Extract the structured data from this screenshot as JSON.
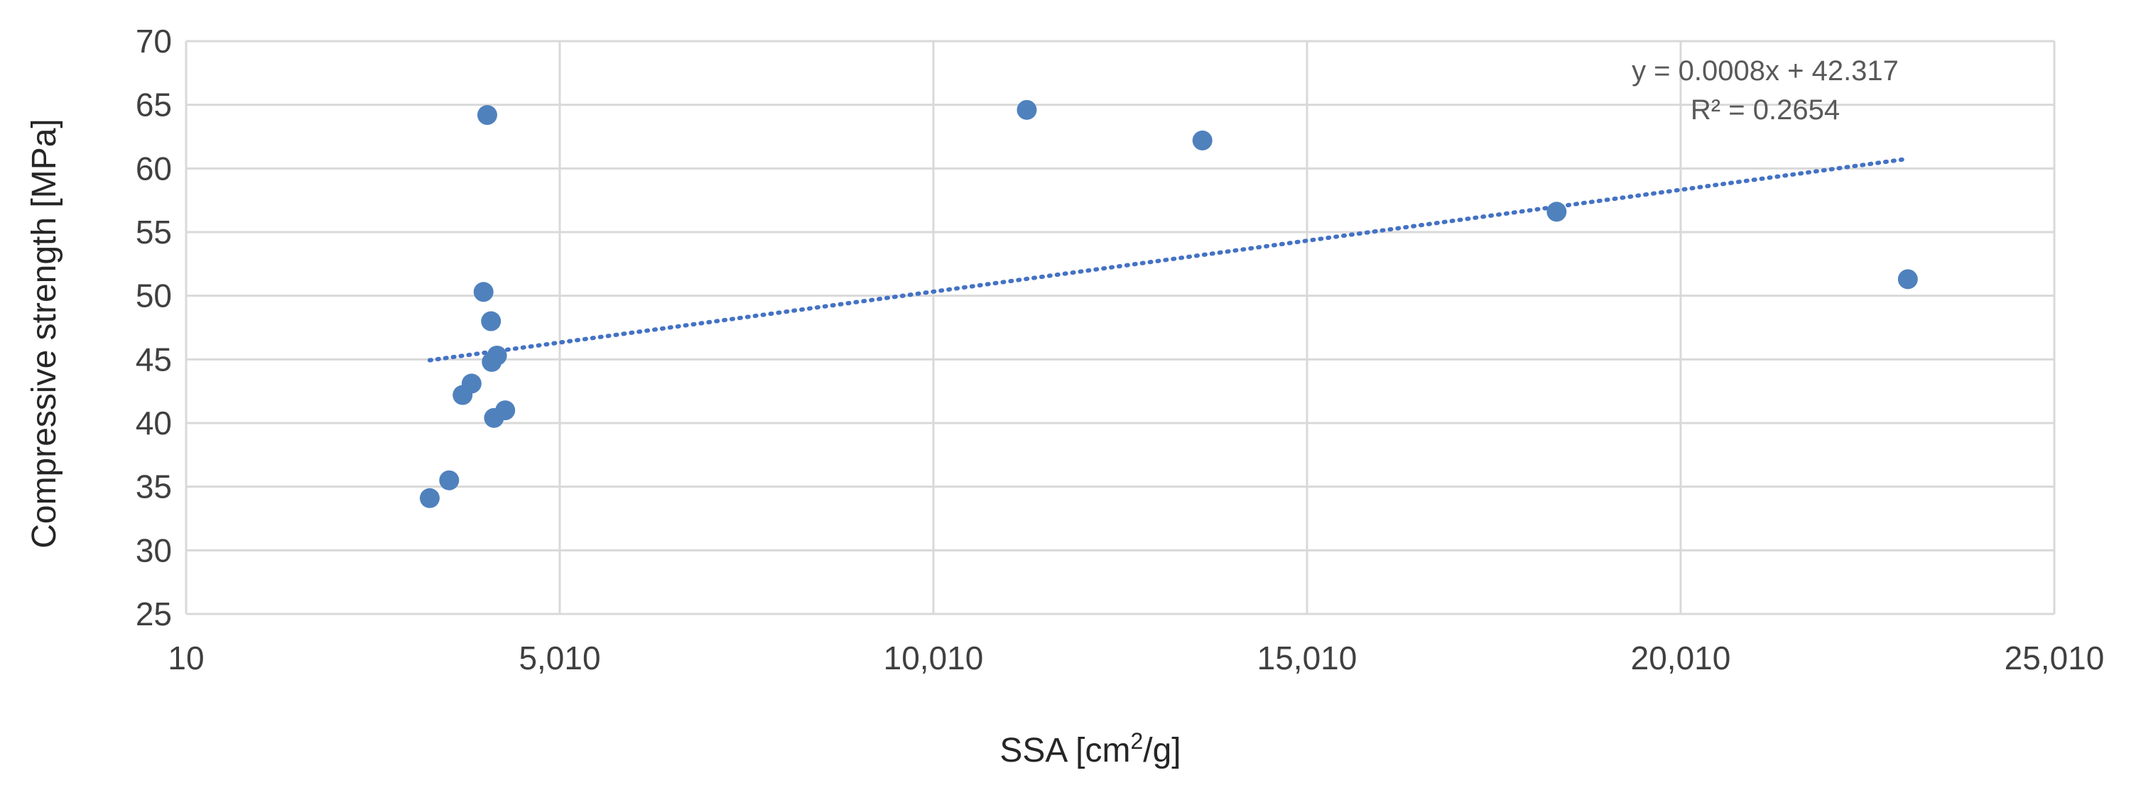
{
  "chart_data": {
    "type": "scatter",
    "xlabel": "SSA [cm",
    "xlabel_sup": "2",
    "xlabel_end": "/g]",
    "ylabel": "Compressive strength  [MPa]",
    "xlim": [
      10,
      25010
    ],
    "ylim": [
      25,
      70
    ],
    "x_ticks": [
      10,
      5010,
      10010,
      15010,
      20010,
      25010
    ],
    "x_tick_labels": [
      "10",
      "5,010",
      "10,010",
      "15,010",
      "20,010",
      "25,010"
    ],
    "y_ticks": [
      25,
      30,
      35,
      40,
      45,
      50,
      55,
      60,
      65,
      70
    ],
    "y_tick_labels": [
      "25",
      "30",
      "35",
      "40",
      "45",
      "50",
      "55",
      "60",
      "65",
      "70"
    ],
    "grid": true,
    "series": [
      {
        "color": "#4f81bd",
        "points": [
          {
            "x": 3270,
            "y": 34.1
          },
          {
            "x": 3530,
            "y": 35.5
          },
          {
            "x": 3710,
            "y": 42.2
          },
          {
            "x": 3830,
            "y": 43.1
          },
          {
            "x": 3990,
            "y": 50.3
          },
          {
            "x": 4090,
            "y": 48.0
          },
          {
            "x": 4100,
            "y": 44.8
          },
          {
            "x": 4170,
            "y": 45.3
          },
          {
            "x": 4130,
            "y": 40.4
          },
          {
            "x": 4280,
            "y": 41.0
          },
          {
            "x": 4040,
            "y": 64.2
          },
          {
            "x": 11260,
            "y": 64.6
          },
          {
            "x": 13610,
            "y": 62.2
          },
          {
            "x": 18350,
            "y": 56.6
          },
          {
            "x": 23050,
            "y": 51.3
          }
        ]
      }
    ],
    "trendline": {
      "type": "linear",
      "slope": 0.0008,
      "intercept": 42.317,
      "x_range": [
        3270,
        23050
      ],
      "color": "#4472c4",
      "equation": "y = 0.0008x + 42.317",
      "r2": "R² = 0.2654"
    }
  }
}
